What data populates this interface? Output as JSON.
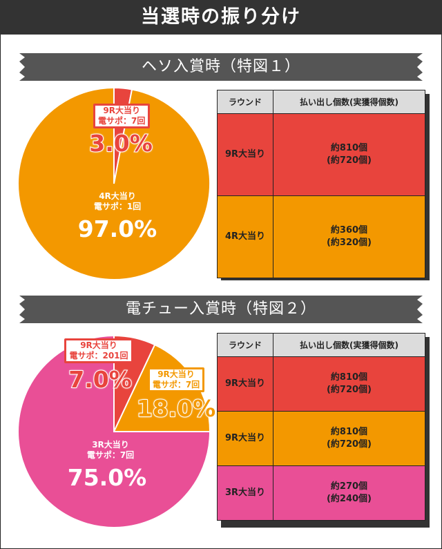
{
  "title": "当選時の振り分け",
  "colors": {
    "red": "#e8443d",
    "orange": "#f39800",
    "pink": "#e94f96",
    "header_bg": "#333333"
  },
  "sections": [
    {
      "heading": "ヘソ入賞時（特図１）",
      "chart_data": {
        "type": "pie",
        "title": "ヘソ入賞時（特図１）",
        "slices": [
          {
            "round": "9R大当り",
            "sub": "電サポ：7回",
            "value": 3.0,
            "label": "3.0%",
            "color": "#e8443d"
          },
          {
            "round": "4R大当り",
            "sub": "電サポ：1回",
            "value": 97.0,
            "label": "97.0%",
            "color": "#f39800"
          }
        ]
      },
      "table": {
        "headers": [
          "ラウンド",
          "払い出し個数(実獲得個数)"
        ],
        "rows": [
          {
            "round": "9R大当り",
            "line1": "約810個",
            "line2": "(約720個)",
            "color": "#e8443d"
          },
          {
            "round": "4R大当り",
            "line1": "約360個",
            "line2": "(約320個)",
            "color": "#f39800"
          }
        ]
      }
    },
    {
      "heading": "電チュー入賞時（特図２）",
      "chart_data": {
        "type": "pie",
        "title": "電チュー入賞時（特図２）",
        "slices": [
          {
            "round": "9R大当り",
            "sub": "電サポ：201回",
            "value": 7.0,
            "label": "7.0%",
            "color": "#e8443d"
          },
          {
            "round": "9R大当り",
            "sub": "電サポ：7回",
            "value": 18.0,
            "label": "18.0%",
            "color": "#f39800"
          },
          {
            "round": "3R大当り",
            "sub": "電サポ：7回",
            "value": 75.0,
            "label": "75.0%",
            "color": "#e94f96"
          }
        ]
      },
      "table": {
        "headers": [
          "ラウンド",
          "払い出し個数(実獲得個数)"
        ],
        "rows": [
          {
            "round": "9R大当り",
            "line1": "約810個",
            "line2": "(約720個)",
            "color": "#e8443d"
          },
          {
            "round": "9R大当り",
            "line1": "約810個",
            "line2": "(約720個)",
            "color": "#f39800"
          },
          {
            "round": "3R大当り",
            "line1": "約270個",
            "line2": "(約240個)",
            "color": "#e94f96"
          }
        ]
      }
    }
  ]
}
